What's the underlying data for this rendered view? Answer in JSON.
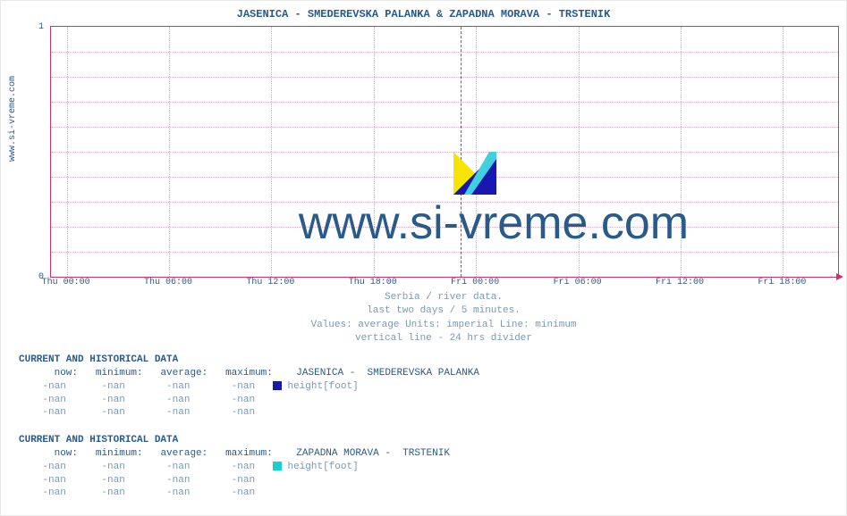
{
  "chart": {
    "title": "JASENICA -  SMEDEREVSKA PALANKA &  ZAPADNA MORAVA -  TRSTENIK",
    "ylabel_rotated": "www.si-vreme.com",
    "watermark_text": "www.si-vreme.com",
    "border_color": "#cc3366",
    "grid_color": "#ddb0c8",
    "title_color": "#2a5a8a",
    "ylim": [
      0,
      1
    ],
    "yticks": [
      {
        "value": 0,
        "label": "0",
        "pos_pct": 100
      },
      {
        "value": 1,
        "label": "1",
        "pos_pct": 0
      }
    ],
    "hgrid_pct": [
      10,
      20,
      30,
      40,
      50,
      60,
      70,
      80,
      90
    ],
    "xticks": [
      {
        "label": "Thu 00:00",
        "pos_pct": 2
      },
      {
        "label": "Thu 06:00",
        "pos_pct": 15
      },
      {
        "label": "Thu 12:00",
        "pos_pct": 28
      },
      {
        "label": "Thu 18:00",
        "pos_pct": 41
      },
      {
        "label": "Fri 00:00",
        "pos_pct": 54
      },
      {
        "label": "Fri 06:00",
        "pos_pct": 67
      },
      {
        "label": "Fri 12:00",
        "pos_pct": 80
      },
      {
        "label": "Fri 18:00",
        "pos_pct": 93
      }
    ],
    "divider_24h_pct": 52,
    "subtitle_lines": [
      "Serbia / river data.",
      "last two days / 5 minutes.",
      "Values: average  Units: imperial  Line: minimum",
      "vertical line - 24 hrs  divider"
    ]
  },
  "sections": [
    {
      "heading": "CURRENT AND HISTORICAL DATA",
      "station": " JASENICA -  SMEDEREVSKA PALANKA",
      "swatch_color": "#1818b0",
      "metric_label": "height[foot]",
      "columns": [
        "now:",
        "minimum:",
        "average:",
        "maximum:"
      ],
      "rows": [
        [
          "-nan",
          "-nan",
          "-nan",
          "-nan"
        ],
        [
          "-nan",
          "-nan",
          "-nan",
          "-nan"
        ],
        [
          "-nan",
          "-nan",
          "-nan",
          "-nan"
        ]
      ]
    },
    {
      "heading": "CURRENT AND HISTORICAL DATA",
      "station": " ZAPADNA MORAVA -  TRSTENIK",
      "swatch_color": "#18d0d0",
      "metric_label": "height[foot]",
      "columns": [
        "now:",
        "minimum:",
        "average:",
        "maximum:"
      ],
      "rows": [
        [
          "-nan",
          "-nan",
          "-nan",
          "-nan"
        ],
        [
          "-nan",
          "-nan",
          "-nan",
          "-nan"
        ],
        [
          "-nan",
          "-nan",
          "-nan",
          "-nan"
        ]
      ]
    }
  ]
}
